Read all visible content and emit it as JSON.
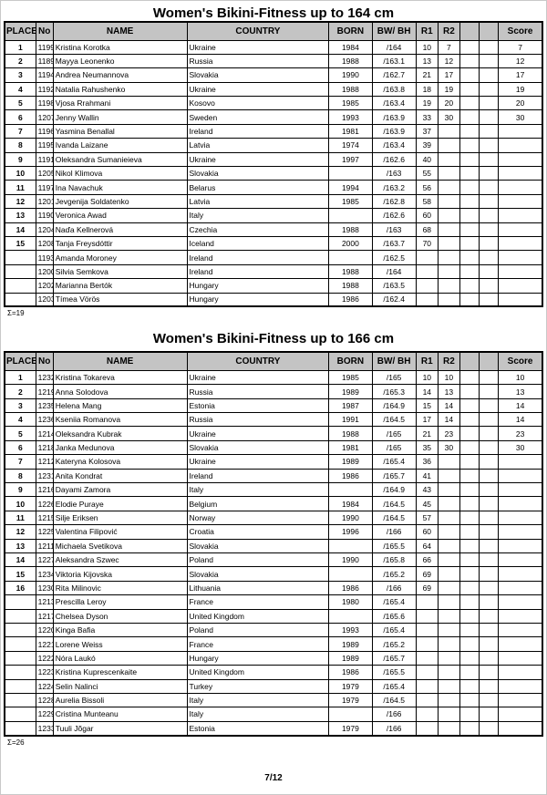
{
  "page": {
    "footer": "7/12"
  },
  "tables": [
    {
      "title": "Women's Bikini-Fitness up to 164 cm",
      "headers": [
        "PLACE",
        "No",
        "NAME",
        "COUNTRY",
        "BORN",
        "BW/ BH",
        "R1",
        "R2",
        "",
        "",
        "Score"
      ],
      "sum_label": "Σ=19",
      "rows": [
        [
          "1",
          "1199",
          "Kristina Korotka",
          "Ukraine",
          "1984",
          "/164",
          "10",
          "7",
          "",
          "",
          "7"
        ],
        [
          "2",
          "1189",
          "Mayya Leonenko",
          "Russia",
          "1988",
          "/163.1",
          "13",
          "12",
          "",
          "",
          "12"
        ],
        [
          "3",
          "1194",
          "Andrea Neumannova",
          "Slovakia",
          "1990",
          "/162.7",
          "21",
          "17",
          "",
          "",
          "17"
        ],
        [
          "4",
          "1192",
          "Natalia Rahushenko",
          "Ukraine",
          "1988",
          "/163.8",
          "18",
          "19",
          "",
          "",
          "19"
        ],
        [
          "5",
          "1198",
          "Vjosa Rrahmani",
          "Kosovo",
          "1985",
          "/163.4",
          "19",
          "20",
          "",
          "",
          "20"
        ],
        [
          "6",
          "1207",
          "Jenny Wallin",
          "Sweden",
          "1993",
          "/163.9",
          "33",
          "30",
          "",
          "",
          "30"
        ],
        [
          "7",
          "1196",
          "Yasmina Benallal",
          "Ireland",
          "1981",
          "/163.9",
          "37",
          "",
          "",
          "",
          ""
        ],
        [
          "8",
          "1195",
          "Ivanda Laizane",
          "Latvia",
          "1974",
          "/163.4",
          "39",
          "",
          "",
          "",
          ""
        ],
        [
          "9",
          "1191",
          "Oleksandra Sumanieieva",
          "Ukraine",
          "1997",
          "/162.6",
          "40",
          "",
          "",
          "",
          ""
        ],
        [
          "10",
          "1205",
          "Nikol Klimova",
          "Slovakia",
          "",
          "/163",
          "55",
          "",
          "",
          "",
          ""
        ],
        [
          "11",
          "1197",
          "Ina Navachuk",
          "Belarus",
          "1994",
          "/163.2",
          "56",
          "",
          "",
          "",
          ""
        ],
        [
          "12",
          "1201",
          "Jevgenija Soldatenko",
          "Latvia",
          "1985",
          "/162.8",
          "58",
          "",
          "",
          "",
          ""
        ],
        [
          "13",
          "1190",
          "Veronica Awad",
          "Italy",
          "",
          "/162.6",
          "60",
          "",
          "",
          "",
          ""
        ],
        [
          "14",
          "1204",
          "Naďa Kellnerová",
          "Czechia",
          "1988",
          "/163",
          "68",
          "",
          "",
          "",
          ""
        ],
        [
          "15",
          "1208",
          "Tanja Freysdóttir",
          "Iceland",
          "2000",
          "/163.7",
          "70",
          "",
          "",
          "",
          ""
        ],
        [
          "",
          "1193",
          "Amanda Moroney",
          "Ireland",
          "",
          "/162.5",
          "",
          "",
          "",
          "",
          ""
        ],
        [
          "",
          "1200",
          "Silvia Semkova",
          "Ireland",
          "1988",
          "/164",
          "",
          "",
          "",
          "",
          ""
        ],
        [
          "",
          "1202",
          "Marianna Bertók",
          "Hungary",
          "1988",
          "/163.5",
          "",
          "",
          "",
          "",
          ""
        ],
        [
          "",
          "1203",
          "Tímea Vörös",
          "Hungary",
          "1986",
          "/162.4",
          "",
          "",
          "",
          "",
          ""
        ]
      ]
    },
    {
      "title": "Women's Bikini-Fitness up to 166 cm",
      "headers": [
        "PLACE",
        "No",
        "NAME",
        "COUNTRY",
        "BORN",
        "BW/ BH",
        "R1",
        "R2",
        "",
        "",
        "Score"
      ],
      "sum_label": "Σ=26",
      "rows": [
        [
          "1",
          "1232",
          "Kristina Tokareva",
          "Ukraine",
          "1985",
          "/165",
          "10",
          "10",
          "",
          "",
          "10"
        ],
        [
          "2",
          "1219",
          "Anna Solodova",
          "Russia",
          "1989",
          "/165.3",
          "14",
          "13",
          "",
          "",
          "13"
        ],
        [
          "3",
          "1235",
          "Helena Mang",
          "Estonia",
          "1987",
          "/164.9",
          "15",
          "14",
          "",
          "",
          "14"
        ],
        [
          "4",
          "1236",
          "Kseniia Romanova",
          "Russia",
          "1991",
          "/164.5",
          "17",
          "14",
          "",
          "",
          "14"
        ],
        [
          "5",
          "1214",
          "Oleksandra Kubrak",
          "Ukraine",
          "1988",
          "/165",
          "21",
          "23",
          "",
          "",
          "23"
        ],
        [
          "6",
          "1218",
          "Janka Medunova",
          "Slovakia",
          "1981",
          "/165",
          "35",
          "30",
          "",
          "",
          "30"
        ],
        [
          "7",
          "1212",
          "Kateryna Kolosova",
          "Ukraine",
          "1989",
          "/165.4",
          "36",
          "",
          "",
          "",
          ""
        ],
        [
          "8",
          "1231",
          "Anita Kondrat",
          "Ireland",
          "1986",
          "/165.7",
          "41",
          "",
          "",
          "",
          ""
        ],
        [
          "9",
          "1216",
          "Dayami Zamora",
          "Italy",
          "",
          "/164.9",
          "43",
          "",
          "",
          "",
          ""
        ],
        [
          "10",
          "1226",
          "Elodie Puraye",
          "Belgium",
          "1984",
          "/164.5",
          "45",
          "",
          "",
          "",
          ""
        ],
        [
          "11",
          "1215",
          "Silje Eriksen",
          "Norway",
          "1990",
          "/164.5",
          "57",
          "",
          "",
          "",
          ""
        ],
        [
          "12",
          "1225",
          "Valentina Filipović",
          "Croatia",
          "1996",
          "/166",
          "60",
          "",
          "",
          "",
          ""
        ],
        [
          "13",
          "1211",
          "Michaela Svetikova",
          "Slovakia",
          "",
          "/165.5",
          "64",
          "",
          "",
          "",
          ""
        ],
        [
          "14",
          "1227",
          "Aleksandra Szwec",
          "Poland",
          "1990",
          "/165.8",
          "66",
          "",
          "",
          "",
          ""
        ],
        [
          "15",
          "1234",
          "Viktoria Kijovska",
          "Slovakia",
          "",
          "/165.2",
          "69",
          "",
          "",
          "",
          ""
        ],
        [
          "16",
          "1230",
          "Rita Milinovic",
          "Lithuania",
          "1986",
          "/166",
          "69",
          "",
          "",
          "",
          ""
        ],
        [
          "",
          "1213",
          "Prescilla Leroy",
          "France",
          "1980",
          "/165.4",
          "",
          "",
          "",
          "",
          ""
        ],
        [
          "",
          "1217",
          "Chelsea Dyson",
          "United Kingdom",
          "",
          "/165.6",
          "",
          "",
          "",
          "",
          ""
        ],
        [
          "",
          "1220",
          "Kinga Bafia",
          "Poland",
          "1993",
          "/165.4",
          "",
          "",
          "",
          "",
          ""
        ],
        [
          "",
          "1221",
          "Lorene Weiss",
          "France",
          "1989",
          "/165.2",
          "",
          "",
          "",
          "",
          ""
        ],
        [
          "",
          "1222",
          "Nóra Laukó",
          "Hungary",
          "1989",
          "/165.7",
          "",
          "",
          "",
          "",
          ""
        ],
        [
          "",
          "1223",
          "Kristina Kuprescenkaite",
          "United Kingdom",
          "1986",
          "/165.5",
          "",
          "",
          "",
          "",
          ""
        ],
        [
          "",
          "1224",
          "Selin Nalinci",
          "Turkey",
          "1979",
          "/165.4",
          "",
          "",
          "",
          "",
          ""
        ],
        [
          "",
          "1228",
          "Aurelia Bissoli",
          "Italy",
          "1979",
          "/164.5",
          "",
          "",
          "",
          "",
          ""
        ],
        [
          "",
          "1229",
          "Cristina Munteanu",
          "Italy",
          "",
          "/166",
          "",
          "",
          "",
          "",
          ""
        ],
        [
          "",
          "1233",
          "Tuuli Jõgar",
          "Estonia",
          "1979",
          "/166",
          "",
          "",
          "",
          "",
          ""
        ]
      ]
    }
  ]
}
